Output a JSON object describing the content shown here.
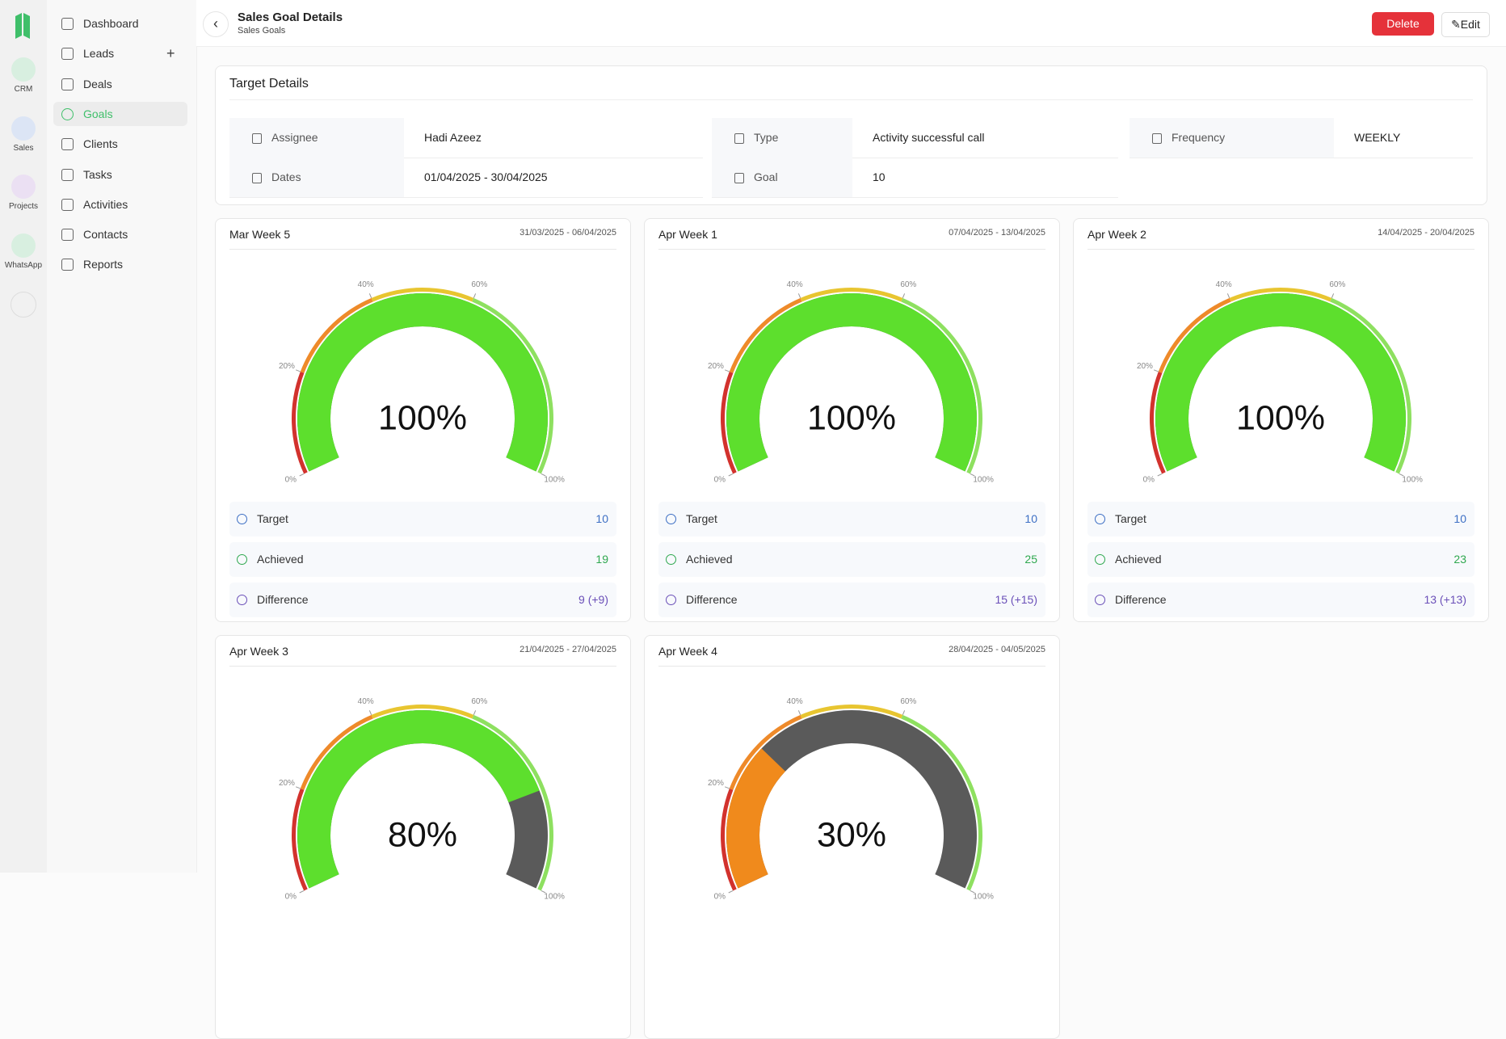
{
  "rail": {
    "items": [
      "CRM",
      "Sales",
      "Projects",
      "WhatsApp"
    ]
  },
  "nav": {
    "items": [
      "Dashboard",
      "Leads",
      "Deals",
      "Goals",
      "Clients",
      "Tasks",
      "Activities",
      "Contacts",
      "Reports"
    ],
    "active": "Goals"
  },
  "header": {
    "title": "Sales Goal Details",
    "subtitle": "Sales Goals",
    "delete": "Delete",
    "edit": "Edit"
  },
  "details": {
    "title": "Target Details",
    "fields": [
      {
        "label": "Assignee",
        "value": "Hadi Azeez"
      },
      {
        "label": "Type",
        "value": "Activity successful call"
      },
      {
        "label": "Frequency",
        "value": "WEEKLY"
      },
      {
        "label": "Dates",
        "value": "01/04/2025 - 30/04/2025"
      },
      {
        "label": "Goal",
        "value": 10
      }
    ]
  },
  "gauge_ticks": [
    {
      "value": 0,
      "label": "0%"
    },
    {
      "value": 20,
      "label": "20%"
    },
    {
      "value": 40,
      "label": "40%"
    },
    {
      "value": 60,
      "label": "60%"
    },
    {
      "value": 100,
      "label": "100%"
    }
  ],
  "stat_labels": {
    "target": "Target",
    "achieved": "Achieved",
    "difference": "Difference"
  },
  "weeks": [
    {
      "name": "Mar Week 5",
      "dates": "31/03/2025 - 06/04/2025",
      "progress": 100,
      "progress_label": "100%",
      "color": "#5ddf2d",
      "target": 10,
      "achieved": 19,
      "difference": "9 (+9)"
    },
    {
      "name": "Apr Week 1",
      "dates": "07/04/2025 - 13/04/2025",
      "progress": 100,
      "progress_label": "100%",
      "color": "#5ddf2d",
      "target": 10,
      "achieved": 25,
      "difference": "15 (+15)"
    },
    {
      "name": "Apr Week 2",
      "dates": "14/04/2025 - 20/04/2025",
      "progress": 100,
      "progress_label": "100%",
      "color": "#5ddf2d",
      "target": 10,
      "achieved": 23,
      "difference": "13 (+13)"
    },
    {
      "name": "Apr Week 3",
      "dates": "21/04/2025 - 27/04/2025",
      "progress": 80,
      "progress_label": "80%",
      "color": "#5ddf2d"
    },
    {
      "name": "Apr Week 4",
      "dates": "28/04/2025 - 04/05/2025",
      "progress": 30,
      "progress_label": "30%",
      "color": "#f08a1c"
    }
  ]
}
